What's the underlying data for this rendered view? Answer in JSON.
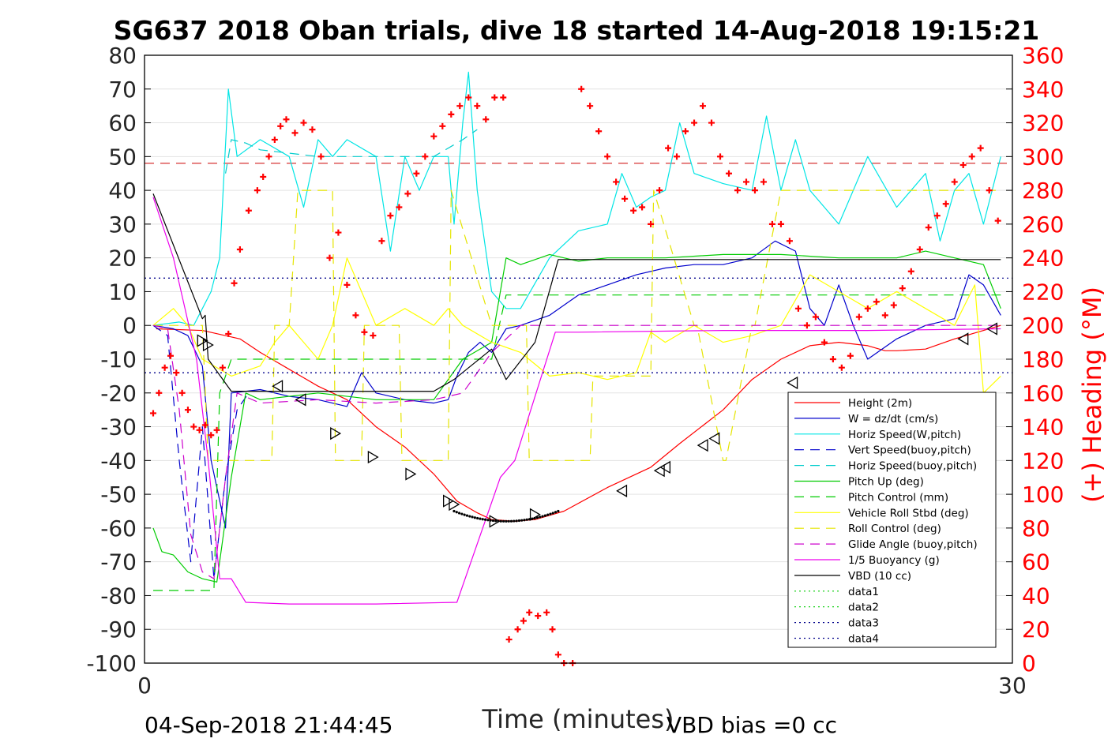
{
  "chart_data": {
    "type": "line",
    "title": "SG637 2018 Oban trials, dive 18 started 14-Aug-2018 19:15:21",
    "xlabel": "Time (minutes)",
    "ylabel": "",
    "y2label": "(+) Heading (°M)",
    "xlim": [
      0,
      30
    ],
    "ylim": [
      -100,
      80
    ],
    "y2lim": [
      0,
      360
    ],
    "xticks": [
      0,
      30
    ],
    "yticks": [
      -100,
      -90,
      -80,
      -70,
      -60,
      -50,
      -40,
      -30,
      -20,
      -10,
      0,
      10,
      20,
      30,
      40,
      50,
      60,
      70,
      80
    ],
    "y2ticks": [
      0,
      20,
      40,
      60,
      80,
      100,
      120,
      140,
      160,
      180,
      200,
      220,
      240,
      260,
      280,
      300,
      320,
      340,
      360
    ],
    "grid": "horizontal",
    "legend_position": "lower-right",
    "footer_left": "04-Sep-2018 21:44:45",
    "footer_right": "VBD bias =0 cc",
    "colors": {
      "height": "#ff0000",
      "w": "#0000cc",
      "horiz_w": "#00e5e5",
      "vert_buoy": "#0000cc",
      "horiz_buoy": "#00cccc",
      "pitch_up": "#00cc00",
      "pitch_ctl": "#00cc00",
      "roll": "#ffff00",
      "roll_ctl": "#e5e500",
      "glide": "#cc00cc",
      "buoy": "#ee00ee",
      "vbd": "#000000",
      "heading": "#ff0000",
      "ref": "#00008b",
      "ref_heading": "#cc0000"
    },
    "reference_lines": {
      "dark_red_dashed_heading": 296,
      "blue_dotted_upper": 14,
      "blue_dotted_lower": -14
    },
    "series": [
      {
        "name": "Height (2m)",
        "key": "height",
        "style": "solid",
        "x": [
          0.4,
          2,
          3.3,
          4,
          5,
          6,
          7,
          8,
          9,
          10,
          10.8,
          11.5,
          12,
          12.8,
          13.5,
          14.5,
          16,
          17.5,
          18.5,
          20,
          21,
          22,
          23,
          24,
          25,
          25.6,
          26,
          27,
          28,
          29.6
        ],
        "y": [
          -1,
          -1.5,
          -4,
          -8,
          -13,
          -18,
          -22,
          -30,
          -36,
          -44,
          -52,
          -55.5,
          -57.5,
          -58,
          -57.5,
          -55,
          -48,
          -42,
          -35,
          -25,
          -16,
          -10,
          -6,
          -5,
          -6,
          -7.5,
          -7.5,
          -7,
          -4,
          0
        ]
      },
      {
        "name": "W = dz/dt (cm/s)",
        "key": "w",
        "style": "solid",
        "x": [
          0.3,
          1,
          1.5,
          2,
          2.3,
          2.8,
          3,
          4,
          5,
          6,
          7,
          7.5,
          8,
          9,
          10,
          10.5,
          10.8,
          11.2,
          11.6,
          12,
          12.5,
          13,
          14,
          15,
          16,
          17,
          18,
          19,
          20,
          21,
          21.8,
          22.5,
          23,
          23.5,
          24,
          24.5,
          25,
          26,
          27,
          28,
          28.5,
          29,
          29.6
        ],
        "y": [
          0,
          -1,
          -3,
          -12,
          -40,
          -60,
          -20,
          -19,
          -21,
          -22,
          -24,
          -14,
          -20,
          -22,
          -23,
          -22,
          -15,
          -8,
          -5,
          -8,
          -1,
          0,
          3,
          9,
          12,
          15,
          17,
          18,
          18,
          20,
          25,
          22,
          5,
          0,
          12,
          0,
          -10,
          -4,
          0,
          2,
          15,
          12,
          3
        ]
      },
      {
        "name": "Horiz Speed(W,pitch)",
        "key": "horiz_w",
        "style": "solid",
        "x": [
          0.3,
          1.2,
          1.7,
          2.3,
          2.6,
          2.9,
          3.2,
          4,
          5,
          5.5,
          6,
          6.5,
          7,
          8,
          8.5,
          9,
          9.5,
          10,
          10.5,
          10.7,
          11,
          11.2,
          11.5,
          12,
          12.5,
          13,
          14,
          15,
          16,
          16.5,
          17,
          17.5,
          18,
          18.5,
          19,
          20,
          21,
          21.5,
          22,
          22.5,
          23,
          24,
          25,
          26,
          27,
          27.5,
          28,
          28.5,
          29,
          29.6
        ],
        "y": [
          0,
          1,
          0,
          10,
          20,
          70,
          50,
          55,
          50,
          35,
          55,
          50,
          55,
          50,
          22,
          50,
          40,
          50,
          50,
          30,
          60,
          75,
          40,
          10,
          5,
          5,
          20,
          28,
          30,
          45,
          35,
          38,
          40,
          60,
          45,
          42,
          40,
          62,
          40,
          55,
          40,
          30,
          50,
          35,
          45,
          25,
          40,
          45,
          30,
          50
        ]
      },
      {
        "name": "Vert Speed(buoy,pitch)",
        "key": "vert_buoy",
        "style": "dashed",
        "x": [
          0.3,
          0.8,
          1.2,
          1.6,
          2,
          2.4,
          2.8,
          3.2,
          3.6
        ],
        "y": [
          0,
          -3,
          -40,
          -70,
          -30,
          -75,
          -45,
          -25,
          -20
        ]
      },
      {
        "name": "Horiz Speed(buoy,pitch)",
        "key": "horiz_buoy",
        "style": "dashed",
        "x": [
          2.8,
          3,
          3.5,
          4,
          6,
          8,
          10,
          11,
          11.5
        ],
        "y": [
          45,
          55,
          54,
          52,
          50,
          50,
          50,
          55,
          58
        ]
      },
      {
        "name": "Pitch Up (deg)",
        "key": "pitch_up",
        "style": "solid",
        "x": [
          0.3,
          0.6,
          1,
          1.5,
          2,
          2.5,
          3,
          3.5,
          4,
          6,
          8,
          10,
          11,
          12,
          12.5,
          13,
          14,
          15,
          16,
          18,
          20,
          22,
          24,
          26,
          27,
          28,
          29,
          29.6
        ],
        "y": [
          -60,
          -67,
          -68,
          -73,
          -75,
          -76,
          -45,
          -20,
          -22,
          -20,
          -22,
          -22,
          -10,
          -5,
          20,
          18,
          21,
          19,
          20,
          20,
          21,
          21,
          20,
          20,
          22,
          20,
          18,
          5
        ]
      },
      {
        "name": "Pitch Control (mm)",
        "key": "pitch_ctl",
        "style": "dashed",
        "x": [
          0.3,
          2.4,
          2.6,
          3,
          4,
          6,
          8,
          10,
          10.7,
          11,
          12,
          12.5,
          15,
          20,
          25,
          29.6
        ],
        "y": [
          -78.5,
          -78.5,
          -20,
          -10,
          -10,
          -10,
          -10,
          -10,
          -10,
          -10,
          -10,
          9,
          9,
          9,
          9,
          9
        ]
      },
      {
        "name": "Vehicle Roll Stbd (deg)",
        "key": "roll",
        "style": "solid",
        "x": [
          0.3,
          1,
          1.5,
          2,
          3,
          4,
          4.5,
          5,
          6,
          6.5,
          7,
          7.5,
          8,
          9,
          10,
          10.5,
          11,
          12,
          13,
          14,
          15,
          16,
          17,
          17.5,
          18,
          19,
          20,
          21,
          22,
          23,
          24,
          25,
          26,
          27,
          28,
          28.7,
          29,
          29.6
        ],
        "y": [
          0,
          5,
          0,
          -10,
          -15,
          -12,
          -5,
          0,
          -10,
          0,
          20,
          10,
          0,
          5,
          0,
          5,
          0,
          -5,
          -8,
          -15,
          -14,
          -16,
          -14,
          -2,
          -5,
          0,
          -5,
          -3,
          0,
          15,
          10,
          5,
          10,
          5,
          0,
          12,
          -20,
          -15
        ]
      },
      {
        "name": "Roll Control (deg)",
        "key": "roll_ctl",
        "style": "dashed",
        "x": [
          0.3,
          2,
          2.2,
          4,
          4.4,
          4.5,
          5,
          5.3,
          5.4,
          6.5,
          6.6,
          7,
          7.5,
          7.6,
          8.8,
          8.9,
          10,
          10.5,
          10.6,
          12,
          13.2,
          13.3,
          15.4,
          15.5,
          16,
          17.5,
          17.6,
          19,
          19.1,
          20,
          20.1,
          21,
          21.1,
          22,
          22.1,
          29.6
        ],
        "y": [
          0,
          0,
          -40,
          -40,
          -40,
          0,
          0,
          40,
          40,
          40,
          -40,
          -40,
          -40,
          0,
          0,
          -40,
          -40,
          -40,
          40,
          0,
          0,
          -40,
          -40,
          -15,
          -15,
          -15,
          40,
          0,
          0,
          -40,
          -40,
          0,
          0,
          40,
          40,
          40
        ]
      },
      {
        "name": "Glide Angle (buoy,pitch)",
        "key": "glide",
        "style": "dashed",
        "x": [
          0.3,
          0.8,
          1.2,
          1.6,
          2,
          2.4,
          2.8,
          3.2,
          4,
          6,
          8,
          10,
          11,
          12,
          13,
          15,
          20,
          25,
          29.6
        ],
        "y": [
          0,
          -1,
          -25,
          -62,
          -73,
          -75,
          -45,
          -20,
          -23,
          -22,
          -23,
          -22,
          -20,
          -8,
          0,
          0,
          0,
          0,
          0
        ]
      },
      {
        "name": "1/5 Buoyancy (g)",
        "key": "buoy",
        "style": "solid",
        "x": [
          0.3,
          1,
          1.8,
          2.2,
          2.6,
          3,
          3.5,
          5,
          8,
          10.8,
          12.3,
          12.8,
          14.2,
          15,
          20,
          25,
          29.6
        ],
        "y": [
          38,
          20,
          -10,
          -40,
          -75,
          -75,
          -82,
          -82.5,
          -82.5,
          -82,
          -45,
          -40,
          -2,
          -2,
          -1.5,
          -1.5,
          -1
        ]
      },
      {
        "name": "VBD (10 cc)",
        "key": "vbd",
        "style": "solid",
        "x": [
          0.3,
          2,
          2.1,
          2.2,
          3,
          4,
          6,
          10,
          10.7,
          12,
          12.5,
          13.5,
          14.3,
          15,
          20,
          25,
          29.6
        ],
        "y": [
          39,
          2,
          3,
          -10,
          -19.5,
          -19.5,
          -19.5,
          -19.5,
          -16,
          -7,
          -16,
          -5,
          19.5,
          19.5,
          19.5,
          19.5,
          19.5
        ]
      },
      {
        "name": "data1",
        "key": "data1",
        "style": "dotted",
        "x": [],
        "y": []
      },
      {
        "name": "data2",
        "key": "data2",
        "style": "dotted",
        "x": [],
        "y": []
      },
      {
        "name": "data3",
        "key": "data3",
        "style": "dotted",
        "x": [
          0,
          29.6
        ],
        "y": [
          14,
          14
        ]
      },
      {
        "name": "data4",
        "key": "data4",
        "style": "dotted",
        "x": [
          0,
          29.6
        ],
        "y": [
          -14,
          -14
        ]
      }
    ],
    "heading_points": {
      "axis": "right",
      "x": [
        0.3,
        0.5,
        0.7,
        0.9,
        1.1,
        1.3,
        1.5,
        1.7,
        1.9,
        2.1,
        2.3,
        2.5,
        2.7,
        2.9,
        3.1,
        3.3,
        3.6,
        3.9,
        4.1,
        4.3,
        4.5,
        4.7,
        4.9,
        5.2,
        5.5,
        5.8,
        6.1,
        6.4,
        6.7,
        7.0,
        7.3,
        7.6,
        7.9,
        8.2,
        8.5,
        8.8,
        9.1,
        9.4,
        9.7,
        10.0,
        10.3,
        10.6,
        10.9,
        11.2,
        11.5,
        11.8,
        12.1,
        12.4,
        12.6,
        12.9,
        13.1,
        13.3,
        13.6,
        13.9,
        14.1,
        14.3,
        14.5,
        14.8,
        15.1,
        15.4,
        15.7,
        16.0,
        16.3,
        16.6,
        16.9,
        17.2,
        17.5,
        17.8,
        18.1,
        18.4,
        18.7,
        19.0,
        19.3,
        19.6,
        19.9,
        20.2,
        20.5,
        20.8,
        21.1,
        21.4,
        21.7,
        22.0,
        22.3,
        22.6,
        22.9,
        23.2,
        23.5,
        23.8,
        24.1,
        24.4,
        24.7,
        25.0,
        25.3,
        25.6,
        25.9,
        26.2,
        26.5,
        26.8,
        27.1,
        27.4,
        27.7,
        28.0,
        28.3,
        28.6,
        28.9,
        29.2,
        29.5
      ],
      "y": [
        148,
        160,
        175,
        182,
        172,
        160,
        150,
        140,
        138,
        141,
        135,
        138,
        175,
        195,
        225,
        245,
        268,
        280,
        288,
        300,
        310,
        318,
        322,
        314,
        320,
        316,
        300,
        240,
        255,
        224,
        206,
        196,
        194,
        250,
        265,
        270,
        278,
        290,
        300,
        312,
        318,
        325,
        330,
        335,
        330,
        322,
        335,
        335,
        14,
        20,
        25,
        30,
        28,
        30,
        20,
        5,
        0,
        0,
        340,
        330,
        315,
        300,
        285,
        275,
        268,
        270,
        260,
        280,
        305,
        300,
        315,
        320,
        330,
        320,
        300,
        290,
        280,
        285,
        280,
        285,
        260,
        260,
        250,
        210,
        200,
        205,
        190,
        180,
        175,
        182,
        205,
        210,
        214,
        206,
        212,
        222,
        232,
        245,
        258,
        265,
        272,
        285,
        295,
        300,
        305,
        280,
        262
      ]
    },
    "markers": {
      "type": "triangle",
      "x": [
        2.0,
        2.2,
        4.6,
        5.4,
        6.6,
        7.9,
        9.2,
        10.5,
        10.7,
        12.1,
        13.5,
        16.5,
        17.8,
        18.0,
        19.3,
        19.7,
        22.4,
        28.3,
        29.3
      ],
      "y": [
        -4.5,
        -5.8,
        -18,
        -22,
        -32,
        -39,
        -44,
        -52,
        -53,
        -58,
        -56,
        -49,
        -43,
        -42,
        -35.5,
        -33.5,
        -17,
        -4,
        -1
      ]
    }
  }
}
